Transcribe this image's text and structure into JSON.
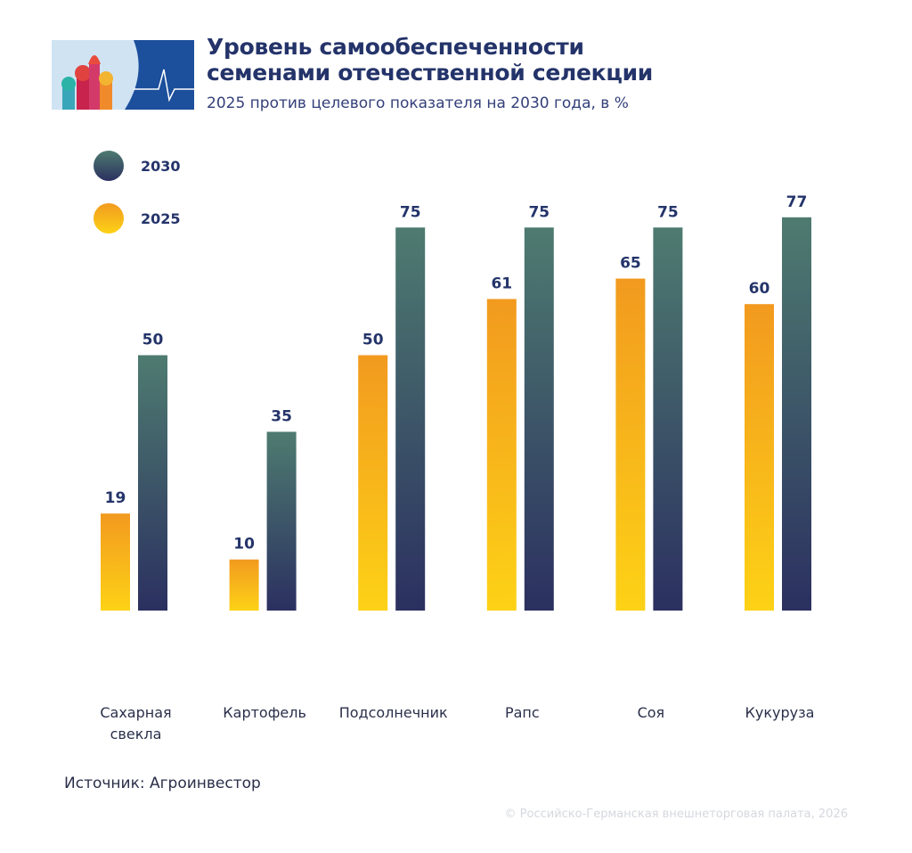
{
  "chart_data": {
    "type": "bar",
    "title": "Уровень самообеспеченности семенами отечественной селекции",
    "subtitle": "2025 против целевого показателя на 2030 года, в %",
    "categories": [
      "Сахарная свекла",
      "Картофель",
      "Подсолнечник",
      "Рапс",
      "Соя",
      "Кукуруза"
    ],
    "series": [
      {
        "name": "2025",
        "color": "#f29a1f",
        "color_end": "#fdd216",
        "values": [
          19,
          10,
          50,
          61,
          65,
          60
        ]
      },
      {
        "name": "2030",
        "color": "#4e7b70",
        "color_end": "#2b3060",
        "values": [
          50,
          35,
          75,
          75,
          75,
          77
        ]
      }
    ],
    "source": "Источник: Агроинвестор",
    "copyright": "© Российско-Германская внешнеторговая палата, 2026"
  }
}
